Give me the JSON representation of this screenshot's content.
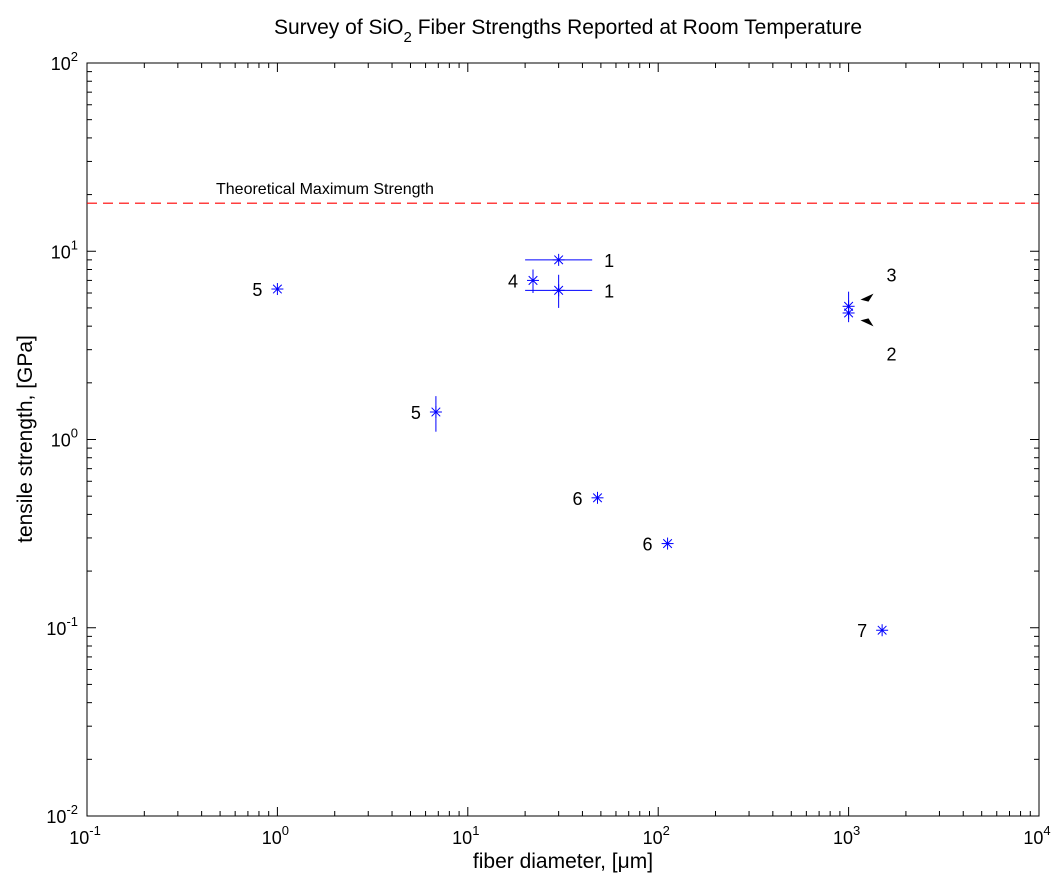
{
  "chart_data": {
    "type": "scatter",
    "title": "Survey of SiO",
    "title_sub": "2",
    "title_rest": " Fiber Strengths Reported at Room Temperature",
    "xlabel": "fiber diameter, [μm]",
    "ylabel": "tensile strength, [GPa]",
    "xscale": "log",
    "yscale": "log",
    "xlim": [
      0.1,
      10000
    ],
    "ylim": [
      0.01,
      100
    ],
    "x_ticks": [
      {
        "value": 0.1,
        "base": "10",
        "exp": "-1"
      },
      {
        "value": 1,
        "base": "10",
        "exp": "0"
      },
      {
        "value": 10,
        "base": "10",
        "exp": "1"
      },
      {
        "value": 100,
        "base": "10",
        "exp": "2"
      },
      {
        "value": 1000,
        "base": "10",
        "exp": "3"
      },
      {
        "value": 10000,
        "base": "10",
        "exp": "4"
      }
    ],
    "y_ticks": [
      {
        "value": 0.01,
        "base": "10",
        "exp": "-2"
      },
      {
        "value": 0.1,
        "base": "10",
        "exp": "-1"
      },
      {
        "value": 1,
        "base": "10",
        "exp": "0"
      },
      {
        "value": 10,
        "base": "10",
        "exp": "1"
      },
      {
        "value": 100,
        "base": "10",
        "exp": "2"
      }
    ],
    "grid": false,
    "theoretical_max": {
      "y": 18,
      "label": "Theoretical Maximum Strength",
      "color": "#ff0000"
    },
    "marker_color": "#0000ff",
    "points": [
      {
        "x": 1.0,
        "y": 6.3,
        "label": "5",
        "label_side": "left"
      },
      {
        "x": 30,
        "y": 9.0,
        "x_err": [
          20,
          45
        ],
        "label": "1",
        "label_side": "right"
      },
      {
        "x": 22,
        "y": 7.0,
        "y_err": [
          6.0,
          8.0
        ],
        "label": "4",
        "label_side": "left"
      },
      {
        "x": 30,
        "y": 6.2,
        "x_err": [
          20,
          45
        ],
        "y_err": [
          5.0,
          7.5
        ],
        "label": "1",
        "label_side": "right"
      },
      {
        "x": 6.8,
        "y": 1.4,
        "y_err": [
          1.1,
          1.7
        ],
        "label": "5",
        "label_side": "left"
      },
      {
        "x": 48,
        "y": 0.49,
        "label": "6",
        "label_side": "left"
      },
      {
        "x": 112,
        "y": 0.28,
        "label": "6",
        "label_side": "left"
      },
      {
        "x": 1500,
        "y": 0.097,
        "label": "7",
        "label_side": "left"
      },
      {
        "x": 1000,
        "y": 5.1,
        "y_err": [
          4.2,
          6.1
        ]
      },
      {
        "x": 1000,
        "y": 4.7
      }
    ],
    "annotations": [
      {
        "text": "3",
        "arrow_to": {
          "x": 1100,
          "y": 5.4
        }
      },
      {
        "text": "2",
        "arrow_to": {
          "x": 1100,
          "y": 4.4
        }
      }
    ]
  }
}
